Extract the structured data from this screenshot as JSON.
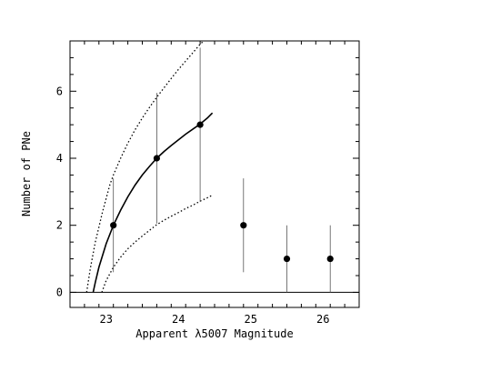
{
  "chart_data": {
    "type": "scatter",
    "title": "",
    "xlabel": "Apparent λ5007 Magnitude",
    "ylabel": "Number of PNe",
    "xlim": [
      22.5,
      26.5
    ],
    "ylim": [
      -0.45,
      7.5
    ],
    "x_ticks": [
      23,
      24,
      25,
      26
    ],
    "y_ticks": [
      0,
      2,
      4,
      6
    ],
    "grid": false,
    "legend": "none",
    "series": [
      {
        "style": "points-with-errorbars",
        "points": [
          {
            "x": 23.1,
            "y": 2,
            "y_low": 0.6,
            "y_high": 3.4
          },
          {
            "x": 23.7,
            "y": 4,
            "y_low": 2.05,
            "y_high": 5.95
          },
          {
            "x": 24.3,
            "y": 5,
            "y_low": 2.7,
            "y_high": 7.3
          },
          {
            "x": 24.9,
            "y": 2,
            "y_low": 0.6,
            "y_high": 3.4
          },
          {
            "x": 25.5,
            "y": 1,
            "y_low": 0,
            "y_high": 2
          },
          {
            "x": 26.1,
            "y": 1,
            "y_low": 0,
            "y_high": 2
          }
        ]
      },
      {
        "style": "solid-curve",
        "points": [
          [
            22.82,
            0
          ],
          [
            22.85,
            0.3
          ],
          [
            22.9,
            0.75
          ],
          [
            23.0,
            1.45
          ],
          [
            23.1,
            2.0
          ],
          [
            23.2,
            2.45
          ],
          [
            23.3,
            2.85
          ],
          [
            23.4,
            3.2
          ],
          [
            23.5,
            3.5
          ],
          [
            23.6,
            3.76
          ],
          [
            23.7,
            4.0
          ],
          [
            23.8,
            4.2
          ],
          [
            23.9,
            4.38
          ],
          [
            24.0,
            4.55
          ],
          [
            24.1,
            4.72
          ],
          [
            24.2,
            4.87
          ],
          [
            24.3,
            5.02
          ],
          [
            24.4,
            5.2
          ],
          [
            24.47,
            5.35
          ]
        ]
      },
      {
        "style": "dotted-curve-upper",
        "points": [
          [
            22.73,
            0
          ],
          [
            22.78,
            0.7
          ],
          [
            22.85,
            1.5
          ],
          [
            22.95,
            2.4
          ],
          [
            23.05,
            3.2
          ],
          [
            23.1,
            3.5
          ],
          [
            23.2,
            4.0
          ],
          [
            23.3,
            4.45
          ],
          [
            23.4,
            4.85
          ],
          [
            23.5,
            5.2
          ],
          [
            23.6,
            5.52
          ],
          [
            23.7,
            5.82
          ],
          [
            23.8,
            6.1
          ],
          [
            23.9,
            6.38
          ],
          [
            24.0,
            6.65
          ],
          [
            24.1,
            6.9
          ],
          [
            24.2,
            7.15
          ],
          [
            24.3,
            7.4
          ],
          [
            24.35,
            7.5
          ]
        ]
      },
      {
        "style": "dotted-curve-lower",
        "points": [
          [
            22.94,
            0
          ],
          [
            23.0,
            0.35
          ],
          [
            23.1,
            0.75
          ],
          [
            23.2,
            1.05
          ],
          [
            23.3,
            1.3
          ],
          [
            23.4,
            1.5
          ],
          [
            23.5,
            1.68
          ],
          [
            23.6,
            1.85
          ],
          [
            23.7,
            2.02
          ],
          [
            23.8,
            2.15
          ],
          [
            23.9,
            2.27
          ],
          [
            24.0,
            2.38
          ],
          [
            24.1,
            2.5
          ],
          [
            24.2,
            2.6
          ],
          [
            24.3,
            2.72
          ],
          [
            24.4,
            2.82
          ],
          [
            24.47,
            2.9
          ]
        ]
      }
    ]
  }
}
